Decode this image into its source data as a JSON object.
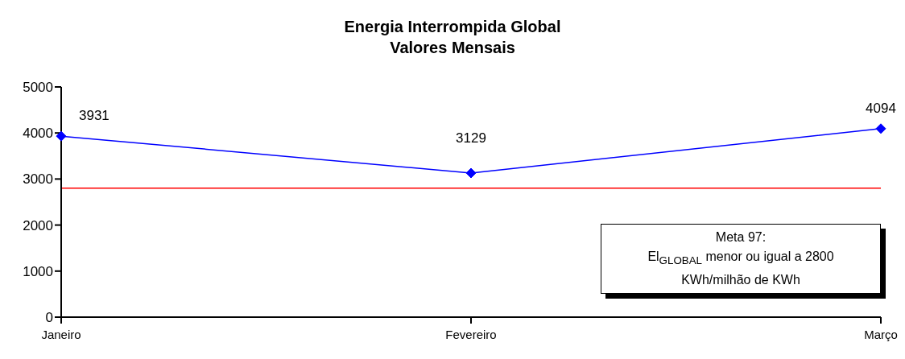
{
  "chart_data": {
    "type": "line",
    "title": "Energia Interrompida Global",
    "subtitle": "Valores Mensais",
    "categories": [
      "Janeiro",
      "Fevereiro",
      "Março"
    ],
    "series": [
      {
        "color": "#0000ff",
        "values": [
          3931,
          3129,
          4094
        ]
      }
    ],
    "ylim": [
      0,
      5000
    ],
    "yticks": [
      0,
      1000,
      2000,
      3000,
      4000,
      5000
    ],
    "ref_lines": [
      {
        "axis": "y",
        "value": 2800,
        "color": "#ff0000"
      }
    ],
    "annotations": [
      "Meta 97:\nEl$_{GLOBAL}$ menor ou igual a 2800\nKWh/milhão de KWh"
    ],
    "data_labels": true,
    "marker": "diamond",
    "line_style": "solid"
  }
}
